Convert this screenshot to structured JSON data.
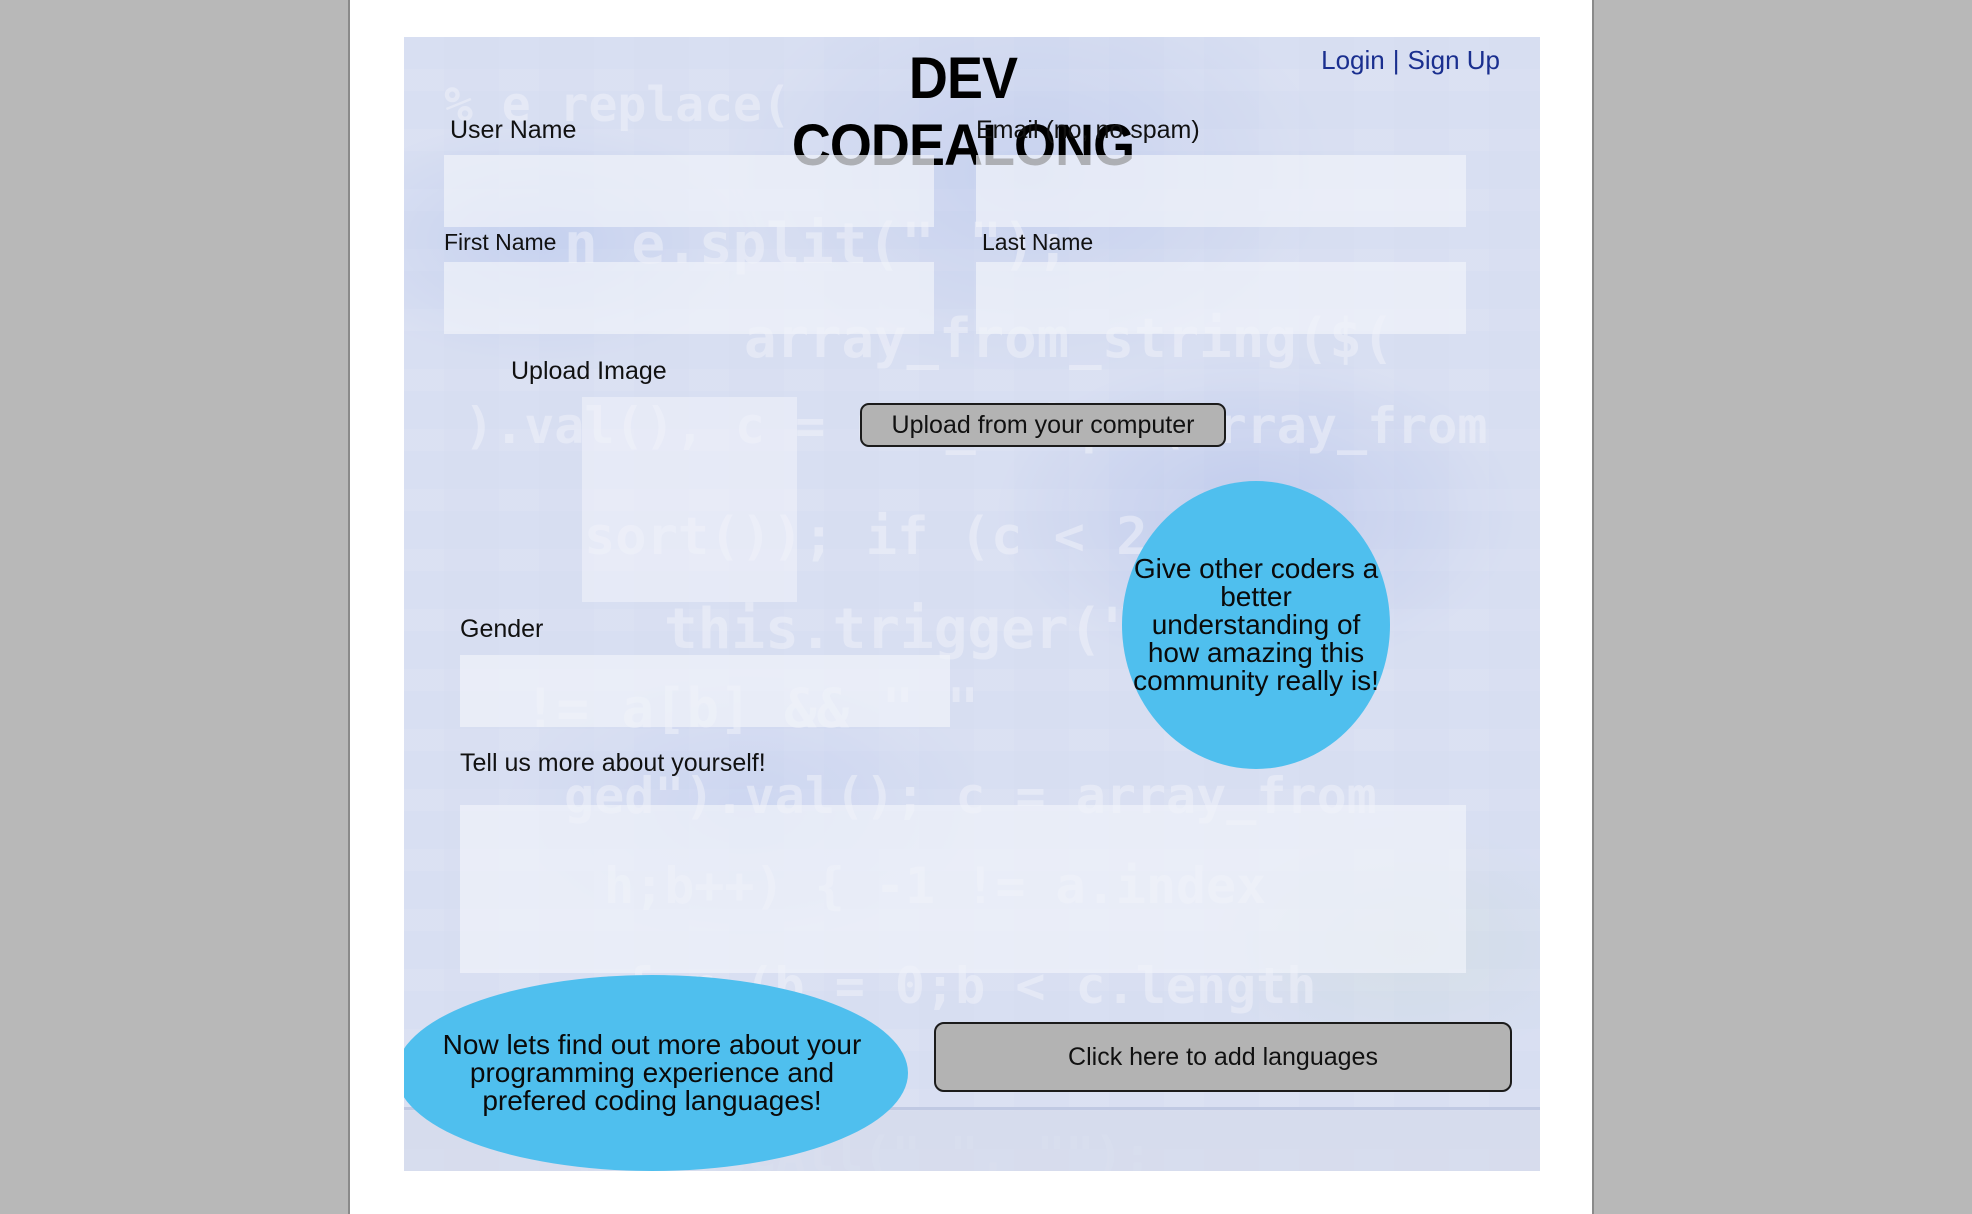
{
  "header": {
    "title": "DEV CODEALONG",
    "login_label": "Login",
    "separator": "|",
    "signup_label": "Sign Up"
  },
  "form": {
    "username_label": "User Name",
    "email_label": "Email (no, no spam)",
    "first_name_label": "First Name",
    "last_name_label": "Last Name",
    "upload_image_label": "Upload Image",
    "upload_button_label": "Upload from your computer",
    "gender_label": "Gender",
    "about_label": "Tell us more about yourself!",
    "add_languages_label": "Click here to add languages"
  },
  "bubbles": {
    "community_text": "Give other coders a better understanding of how amazing this community really is!",
    "languages_text": "Now lets find out more about your programming experience and prefered coding languages!"
  },
  "colors": {
    "link": "#1a2f8f",
    "bubble": "#4fbfee",
    "button": "#b3b3b3"
  }
}
